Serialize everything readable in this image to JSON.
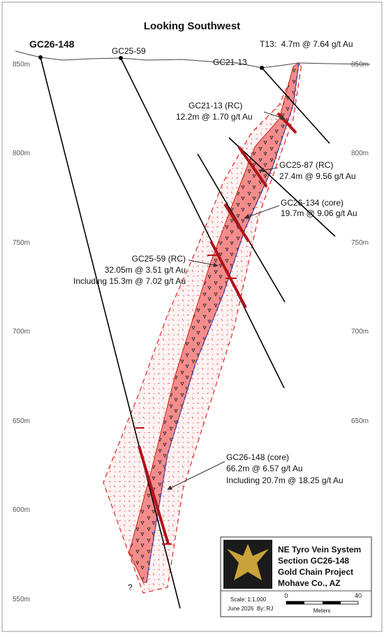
{
  "title": "Looking Southwest",
  "elevation_labels": [
    "850m",
    "800m",
    "750m",
    "700m",
    "650m",
    "600m",
    "550m"
  ],
  "drill_holes": [
    {
      "label": "GC26-148"
    },
    {
      "label": "GC25-59"
    },
    {
      "label": "GC21-13"
    }
  ],
  "annotations": [
    {
      "lines": [
        "T13:  4.7m @ 7.64 g/t Au"
      ]
    },
    {
      "lines": [
        "GC21-13 (RC)",
        "12.2m @ 1.70 g/t Au"
      ]
    },
    {
      "lines": [
        "GC25-87 (RC)",
        "27.4m @ 9.56 g/t Au"
      ]
    },
    {
      "lines": [
        "GC26-134 (core)",
        "19.7m @ 9.06 g/t Au"
      ]
    },
    {
      "lines": [
        "GC25-59 (RC)",
        "32.05m @ 3.51 g/t Au",
        "Including 15.3m @ 7.02 g/t Au"
      ]
    },
    {
      "lines": [
        "GC26-148 (core)",
        "66.2m @ 6.57 g/t Au",
        "Including 20.7m @ 18.25 g/t Au"
      ]
    }
  ],
  "question_mark": "?",
  "legend": {
    "lines": [
      "NE Tyro Vein System",
      "Section GC26-148",
      "Gold Chain Project",
      "Mohave Co., AZ"
    ],
    "scale": "Scale: 1:1,000",
    "date": "June 2026  By: RJ",
    "scale_bar": {
      "start": "0",
      "end": "40",
      "unit": "Meters"
    }
  }
}
